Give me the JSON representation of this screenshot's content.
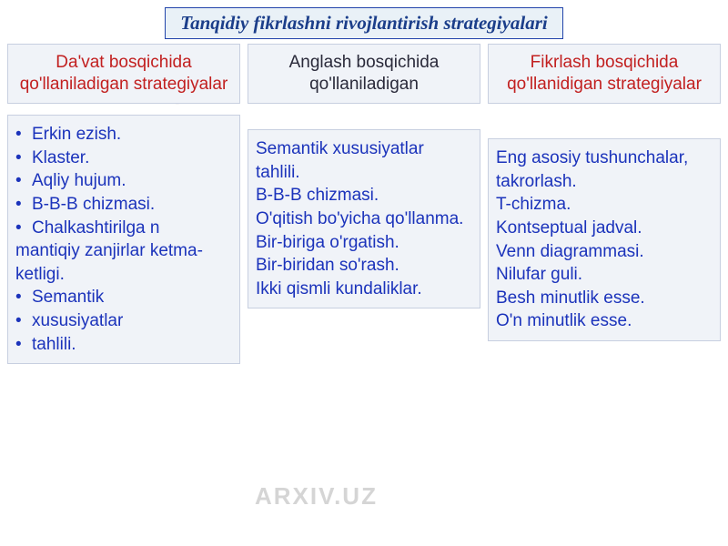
{
  "watermark_text": "ARXIV.UZ",
  "title": "Tanqidiy fikrlashni rivojlantirish strategiyalari",
  "columns": {
    "left": {
      "heading": "Da'vat bosqichida qo'llaniladigan strategiyalar",
      "heading_color": "#c22020",
      "items": [
        "Erkin ezish.",
        "Klaster.",
        "Aqliy hujum.",
        "B-B-B chizmasi.",
        "Chalkashtirilga n"
      ],
      "plain_lines": [
        "mantiqiy zanjirlar ketma- ketligi."
      ],
      "tail_bullets": [
        "Semantik",
        "xususiyatlar",
        "tahlili."
      ]
    },
    "middle": {
      "heading": "Anglash bosqichida qo'llaniladigan",
      "heading_color": "#2a2a3a",
      "lines": [
        "Semantik xususiyatlar tahlili.",
        "B-B-B chizmasi.",
        "O'qitish bo'yicha qo'llanma.",
        "Bir-biriga o'rgatish.",
        "Bir-biridan so'rash.",
        "Ikki qismli kundaliklar."
      ]
    },
    "right": {
      "heading": "Fikrlash bosqichida qo'llanidigan strategiyalar",
      "heading_color": "#c22020",
      "lines": [
        "Eng asosiy tushunchalar, takrorlash.",
        "T-chizma.",
        "Kontseptual jadval.",
        "Venn diagrammasi.",
        "Nilufar guli.",
        "Besh minutlik esse.",
        "O'n minutlik esse."
      ]
    }
  },
  "style": {
    "title_color": "#1b3e8a",
    "body_text_color": "#1b33bb",
    "box_bg": "#f0f3f8",
    "box_border": "#c7cfe0",
    "header_bg": "#e9f1f7",
    "header_border": "#2244aa",
    "watermark_color": "#d5d5d5",
    "title_fontsize": 21,
    "heading_fontsize": 19,
    "body_fontsize": 19
  }
}
